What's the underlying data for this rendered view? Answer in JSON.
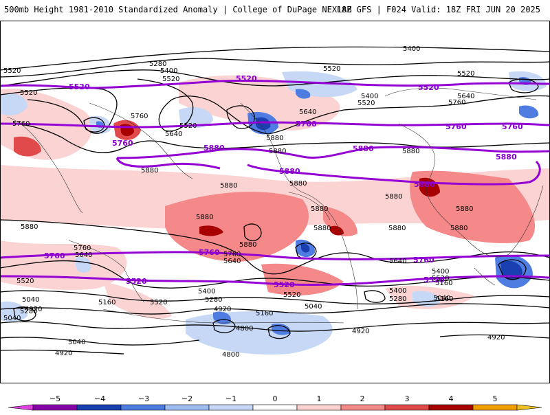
{
  "header": {
    "title": "500mb Height 1981-2010 Standardized Anomaly | College of DuPage NEXLAB",
    "run_info": "18Z GFS | F024 Valid: 18Z FRI JUN 20 2025"
  },
  "colors": {
    "neg5": "#e040e0",
    "neg4": "#8800aa",
    "neg3": "#1a3fb0",
    "neg2": "#4f7ce0",
    "neg1": "#c6d8f5",
    "zero": "#ffffff",
    "pos1": "#fbd3d3",
    "pos2": "#f58888",
    "pos3": "#e04a4a",
    "pos4": "#a80000",
    "pos5": "#f0a000",
    "contour": "#000000",
    "highlight_contour": "#9400d3"
  },
  "colorbar": {
    "ticks": [
      "−5",
      "−4",
      "−3",
      "−2",
      "−1",
      "0",
      "1",
      "2",
      "3",
      "4",
      "5"
    ]
  },
  "contour_labels": {
    "black": [
      "5400",
      "5280",
      "5400",
      "5520",
      "5520",
      "5520",
      "5520",
      "5400",
      "5520",
      "5520",
      "5640",
      "5640",
      "5760",
      "5760",
      "5520",
      "5640",
      "5760",
      "5880",
      "5880",
      "5880",
      "5880",
      "5880",
      "5880",
      "5880",
      "5880",
      "5880",
      "5880",
      "5880",
      "5880",
      "5880",
      "5880",
      "5880",
      "5760",
      "5640",
      "5760",
      "5640",
      "5520",
      "5520",
      "5400",
      "5280",
      "5040",
      "4920",
      "5160",
      "5520",
      "5400",
      "5280",
      "5160",
      "5040",
      "4920",
      "4920",
      "4800",
      "4800",
      "4920",
      "5040",
      "5160",
      "5280",
      "5400",
      "5520",
      "5640",
      "5160",
      "5040",
      "4920",
      "5040"
    ],
    "purple": [
      "5520",
      "5520",
      "5520",
      "5760",
      "5760",
      "5760",
      "5760",
      "5880",
      "5880",
      "5880",
      "5880",
      "5880",
      "5760",
      "5760",
      "5760",
      "5520",
      "5520",
      "5520"
    ]
  }
}
